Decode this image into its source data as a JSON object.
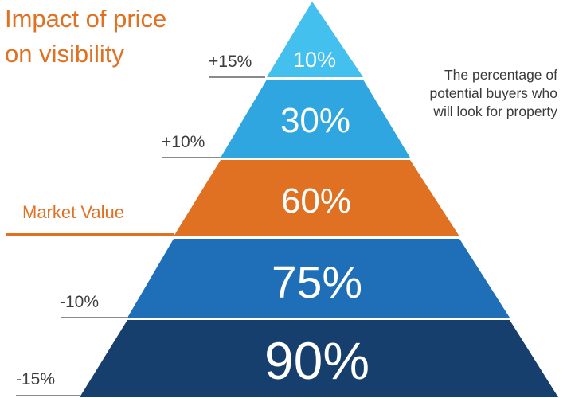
{
  "title": {
    "line1": "Impact of price",
    "line2": "on visibility"
  },
  "note": {
    "line1": "The percentage of",
    "line2": "potential buyers who",
    "line3": "will look for property"
  },
  "market_value_label": "Market Value",
  "tiers": [
    {
      "value_label": "10%",
      "price_change": "+15%",
      "color": "#44c0ee"
    },
    {
      "value_label": "30%",
      "price_change": "+10%",
      "color": "#2fa6e0"
    },
    {
      "value_label": "60%",
      "price_change": "",
      "color": "#e07122"
    },
    {
      "value_label": "75%",
      "price_change": "-10%",
      "color": "#1f6fb8"
    },
    {
      "value_label": "90%",
      "price_change": "-15%",
      "color": "#163f6e"
    }
  ],
  "colors": {
    "accent": "#e07122",
    "line_gray": "#8a8a8a"
  }
}
